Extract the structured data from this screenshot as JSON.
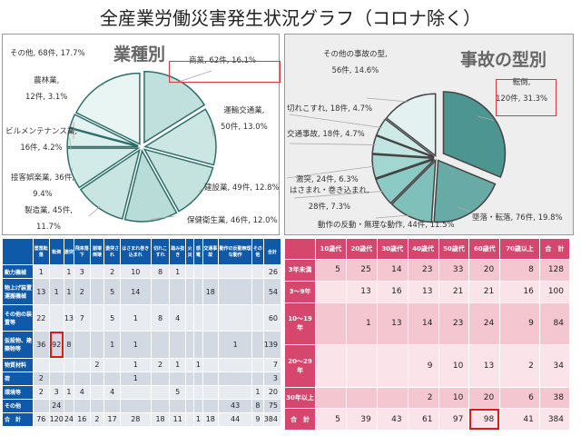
{
  "title": "全産業労働災害発生状況グラフ（コロナ除く）",
  "chart_data": [
    {
      "type": "pie",
      "title": "業種別",
      "slices": [
        {
          "label": "商業",
          "value": 62,
          "percent": 16.1,
          "text": [
            "商業, 62件, 16.1%"
          ],
          "highlight": true
        },
        {
          "label": "運輸交通業",
          "value": 50,
          "percent": 13.0,
          "text": [
            "運輸交通業,",
            "50件, 13.0%"
          ]
        },
        {
          "label": "建設業",
          "value": 49,
          "percent": 12.8,
          "text": [
            "建設業, 49件, 12.8%"
          ]
        },
        {
          "label": "保健衛生業",
          "value": 46,
          "percent": 12.0,
          "text": [
            "保健衛生業, 46件, 12.0%"
          ]
        },
        {
          "label": "製造業",
          "value": 45,
          "percent": 11.7,
          "text": [
            "製造業, 45件,",
            "11.7%"
          ]
        },
        {
          "label": "接客娯楽業",
          "value": 36,
          "percent": 9.4,
          "text": [
            "接客娯楽業, 36件,",
            "9.4%"
          ]
        },
        {
          "label": "ビルメンテナンス業",
          "value": 16,
          "percent": 4.2,
          "text": [
            "ビルメンテナンス業,",
            "16件, 4.2%"
          ]
        },
        {
          "label": "農林業",
          "value": 12,
          "percent": 3.1,
          "text": [
            "農林業,",
            "12件, 3.1%"
          ]
        },
        {
          "label": "その他",
          "value": 68,
          "percent": 17.7,
          "text": [
            "その他, 68件, 17.7%"
          ]
        }
      ],
      "colors": {
        "fill": "#cfe6e3",
        "stroke": "#2f6f6a"
      }
    },
    {
      "type": "pie",
      "title": "事故の型別",
      "slices": [
        {
          "label": "転倒",
          "value": 120,
          "percent": 31.3,
          "text": [
            "転倒,",
            "120件, 31.3%"
          ],
          "highlight": true
        },
        {
          "label": "墜落・転落",
          "value": 76,
          "percent": 19.8,
          "text": [
            "墜落・転落, 76件, 19.8%"
          ]
        },
        {
          "label": "動作の反動・無理な動作",
          "value": 44,
          "percent": 11.5,
          "text": [
            "動作の反動・無理な動作, 44件, 11.5%"
          ]
        },
        {
          "label": "はさまれ・巻き込まれ",
          "value": 28,
          "percent": 7.3,
          "text": [
            "はさまれ・巻き込まれ,",
            "28件, 7.3%"
          ]
        },
        {
          "label": "激突",
          "value": 24,
          "percent": 6.3,
          "text": [
            "激突, 24件, 6.3%"
          ]
        },
        {
          "label": "交通事故",
          "value": 18,
          "percent": 4.7,
          "text": [
            "交通事故, 18件, 4.7%"
          ]
        },
        {
          "label": "切れこすれ",
          "value": 18,
          "percent": 4.7,
          "text": [
            "切れこすれ, 18件, 4.7%"
          ]
        },
        {
          "label": "その他の事故の型",
          "value": 56,
          "percent": 14.6,
          "text": [
            "その他の事故の型,",
            "56件, 14.6%"
          ]
        }
      ],
      "colors": {
        "dark": "#2f7f7a",
        "light": "#e3f2f1",
        "stroke": "#444444"
      }
    },
    {
      "type": "table",
      "columns": [
        "墜落転落",
        "転倒",
        "激突",
        "飛来落下",
        "崩壊倒壊",
        "激突され",
        "はさまれ巻き込まれ",
        "切れこすれ",
        "踏み抜き",
        "火災",
        "感電",
        "交通事故",
        "動作の反動無理な動作",
        "その他",
        "合計"
      ],
      "rows": [
        {
          "label": "動力機械",
          "values": [
            1,
            null,
            1,
            3,
            null,
            2,
            10,
            8,
            1,
            null,
            null,
            null,
            null,
            null,
            26
          ]
        },
        {
          "label": "物上げ装置運搬機械",
          "values": [
            13,
            1,
            1,
            2,
            null,
            5,
            14,
            null,
            null,
            null,
            null,
            18,
            null,
            null,
            54
          ]
        },
        {
          "label": "その他の装置等",
          "values": [
            22,
            null,
            13,
            7,
            null,
            5,
            1,
            8,
            4,
            null,
            null,
            null,
            null,
            null,
            60
          ]
        },
        {
          "label": "仮設物、建築物等",
          "values": [
            36,
            92,
            8,
            null,
            null,
            1,
            1,
            null,
            null,
            null,
            null,
            null,
            1,
            null,
            139
          ],
          "highlight_col": 1
        },
        {
          "label": "物質材料",
          "values": [
            null,
            null,
            null,
            null,
            2,
            null,
            1,
            2,
            1,
            null,
            1,
            null,
            null,
            null,
            7
          ]
        },
        {
          "label": "荷",
          "values": [
            2,
            null,
            null,
            null,
            null,
            null,
            1,
            null,
            null,
            null,
            null,
            null,
            null,
            null,
            3
          ]
        },
        {
          "label": "環境等",
          "values": [
            2,
            3,
            1,
            4,
            null,
            4,
            null,
            null,
            5,
            null,
            null,
            null,
            null,
            1,
            20
          ]
        },
        {
          "label": "その他",
          "values": [
            null,
            24,
            null,
            null,
            null,
            null,
            null,
            null,
            null,
            null,
            null,
            null,
            43,
            8,
            75
          ]
        },
        {
          "label": "合　計",
          "values": [
            76,
            120,
            24,
            16,
            2,
            17,
            28,
            18,
            11,
            null,
            1,
            18,
            44,
            9,
            384
          ]
        }
      ],
      "colors": {
        "header": "#0f5aa8",
        "highlight": "#e01818"
      }
    },
    {
      "type": "table",
      "columns": [
        "10歳代",
        "20歳代",
        "30歳代",
        "40歳代",
        "50歳代",
        "60歳代",
        "70歳以上",
        "合　計"
      ],
      "rows": [
        {
          "label": "3年未満",
          "values": [
            5,
            25,
            14,
            23,
            33,
            20,
            8,
            128
          ]
        },
        {
          "label": "3～9年",
          "values": [
            null,
            13,
            16,
            13,
            21,
            21,
            16,
            100
          ]
        },
        {
          "label": "10～19年",
          "values": [
            null,
            1,
            13,
            14,
            23,
            24,
            9,
            84
          ]
        },
        {
          "label": "20～29年",
          "values": [
            null,
            null,
            null,
            9,
            10,
            13,
            2,
            34
          ]
        },
        {
          "label": "30年以上",
          "values": [
            null,
            null,
            null,
            2,
            10,
            20,
            6,
            38
          ]
        },
        {
          "label": "合　計",
          "values": [
            5,
            39,
            43,
            61,
            97,
            98,
            41,
            384
          ],
          "highlight_col": 5
        }
      ],
      "colors": {
        "header": "#d6476d",
        "highlight": "#e01818"
      }
    }
  ]
}
